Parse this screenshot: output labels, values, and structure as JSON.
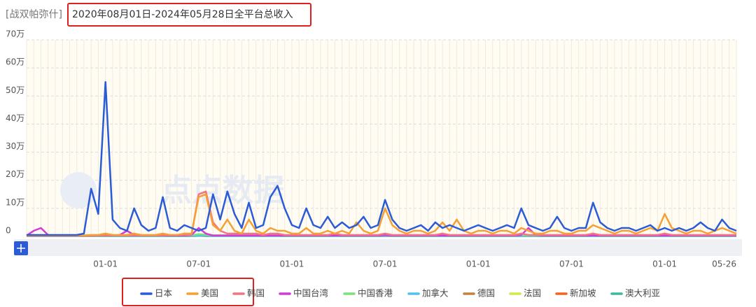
{
  "chart_data": {
    "type": "line",
    "subtitle": "[战双帕弥什]",
    "title": "2020年08月01日-2024年05月28日全平台总收入",
    "watermark": "点点数据",
    "categories": [
      null,
      null,
      null,
      null,
      null,
      null,
      null,
      null,
      null,
      null,
      null,
      "01-01",
      null,
      null,
      null,
      null,
      null,
      null,
      null,
      null,
      null,
      null,
      null,
      null,
      "07-01",
      null,
      null,
      null,
      null,
      null,
      null,
      null,
      null,
      null,
      null,
      null,
      null,
      "01-01",
      null,
      null,
      null,
      null,
      null,
      null,
      null,
      null,
      null,
      null,
      null,
      null,
      "07-01",
      null,
      null,
      null,
      null,
      null,
      null,
      null,
      null,
      null,
      null,
      null,
      null,
      "01-01",
      null,
      null,
      null,
      null,
      null,
      null,
      null,
      null,
      null,
      null,
      null,
      null,
      "07-01",
      null,
      null,
      null,
      null,
      null,
      null,
      null,
      null,
      null,
      null,
      null,
      null,
      "01-01",
      null,
      null,
      null,
      null,
      null,
      null,
      null,
      null,
      null,
      "05-26"
    ],
    "ylim": [
      0,
      70
    ],
    "yticks": [
      0,
      {
        "value": 10,
        "label": "10万"
      },
      {
        "value": 20,
        "label": "20万"
      },
      {
        "value": 30,
        "label": "30万"
      },
      {
        "value": 40,
        "label": "40万"
      },
      {
        "value": 50,
        "label": "50万"
      },
      {
        "value": 60,
        "label": "60万"
      },
      {
        "value": 70,
        "label": "70万"
      }
    ],
    "grid": true,
    "legend": "bottom",
    "series": [
      {
        "name": "日本",
        "color": "#2b5bd7",
        "values": [
          0.5,
          0.5,
          0.5,
          0.5,
          0.5,
          0.5,
          0.5,
          0.5,
          1,
          17,
          8,
          55,
          6,
          3,
          2,
          10,
          4,
          2,
          3,
          14,
          3,
          2,
          4,
          3,
          2,
          3,
          15,
          6,
          16,
          8,
          3,
          12,
          3,
          4,
          14,
          18,
          10,
          4,
          3,
          10,
          4,
          3,
          7,
          3,
          5,
          3,
          4,
          7,
          3,
          4,
          13,
          6,
          3,
          2,
          3,
          4,
          2,
          5,
          3,
          4,
          3,
          2,
          3,
          4,
          3,
          2,
          3,
          4,
          3,
          10,
          4,
          3,
          2,
          3,
          7,
          3,
          2,
          3,
          3,
          12,
          5,
          3,
          2,
          3,
          3,
          2,
          3,
          4,
          2,
          3,
          2,
          3,
          2,
          3,
          5,
          3,
          2,
          6,
          3,
          2
        ]
      },
      {
        "name": "美国",
        "color": "#f5a033",
        "values": [
          0.3,
          0.3,
          0.3,
          0.3,
          0.3,
          0.3,
          0.3,
          0.3,
          0.3,
          0.5,
          0.5,
          1,
          0.5,
          0.5,
          0.5,
          1,
          0.5,
          0.5,
          0.5,
          1,
          0.5,
          0.5,
          1,
          1,
          14,
          15,
          4,
          2,
          6,
          2,
          1,
          6,
          2,
          1,
          3,
          2,
          2,
          1,
          1,
          3,
          1,
          1,
          2,
          1,
          2,
          1,
          5,
          2,
          1,
          2,
          10,
          4,
          2,
          1,
          2,
          2,
          1,
          2,
          5,
          2,
          6,
          2,
          1,
          2,
          2,
          1,
          2,
          2,
          1,
          3,
          2,
          1,
          1,
          2,
          2,
          1,
          1,
          2,
          2,
          4,
          3,
          2,
          1,
          2,
          2,
          1,
          2,
          3,
          2,
          8,
          3,
          2,
          1,
          2,
          2,
          1,
          2,
          3,
          2,
          1
        ]
      },
      {
        "name": "韩国",
        "color": "#f27584",
        "values": [
          0.2,
          0.2,
          0.2,
          0.2,
          0.2,
          0.2,
          0.2,
          0.2,
          0.2,
          0.2,
          0.3,
          0.3,
          0.3,
          0.3,
          0.3,
          0.3,
          0.3,
          0.3,
          0.3,
          0.3,
          0.5,
          0.5,
          0.5,
          0.5,
          15,
          16,
          5,
          2,
          1,
          1,
          1,
          1,
          1,
          0.5,
          1,
          1,
          0.5,
          0.5,
          0.5,
          0.5,
          0.5,
          0.5,
          0.5,
          1,
          0.5,
          0.5,
          0.5,
          0.5,
          0.5,
          0.5,
          1,
          0.5,
          0.5,
          0.5,
          0.5,
          0.5,
          0.5,
          0.5,
          1,
          0.5,
          0.5,
          0.5,
          0.5,
          0.5,
          0.5,
          0.5,
          0.5,
          0.5,
          0.5,
          1,
          0.5,
          0.5,
          0.5,
          0.5,
          0.5,
          0.5,
          0.5,
          0.5,
          0.5,
          1,
          0.5,
          0.5,
          0.5,
          0.5,
          0.5,
          0.5,
          0.5,
          0.5,
          0.5,
          1,
          0.5,
          0.5,
          0.5,
          0.5,
          0.5,
          0.5,
          0.5,
          0.5,
          0.5,
          0.5
        ]
      },
      {
        "name": "中国台湾",
        "color": "#d63ad6",
        "values": [
          0.3,
          2,
          3,
          0.5,
          0.3,
          0.3,
          0.3,
          0.3,
          0.3,
          0.3,
          0.3,
          0.3,
          0.3,
          0.5,
          2,
          0.5,
          0.3,
          0.3,
          0.3,
          0.3,
          0.3,
          0.3,
          0.3,
          0.5,
          3,
          1,
          0.3,
          0.3,
          0.3,
          0.3,
          0.3,
          0.3,
          0.3,
          0.3,
          0.3,
          0.3,
          0.3,
          0.3,
          0.3,
          0.3,
          0.3,
          0.3,
          0.3,
          0.3,
          0.3,
          0.3,
          0.3,
          0.3,
          0.3,
          0.3,
          0.5,
          0.3,
          0.3,
          0.3,
          0.3,
          0.3,
          0.3,
          0.3,
          0.3,
          0.3,
          0.3,
          0.3,
          0.3,
          0.3,
          0.3,
          0.3,
          0.3,
          0.3,
          0.3,
          0.5,
          3,
          0.5,
          0.3,
          0.3,
          0.3,
          0.3,
          0.3,
          0.3,
          0.3,
          0.3,
          0.3,
          0.3,
          0.3,
          0.3,
          0.3,
          0.3,
          0.3,
          0.3,
          0.3,
          0.3,
          0.3,
          0.3,
          0.3,
          0.3,
          0.3,
          0.3,
          0.3,
          0.3,
          0.3,
          0.3
        ]
      },
      {
        "name": "中国香港",
        "color": "#7fe07f",
        "values": [
          0.4,
          0.4,
          0.4,
          0.4,
          0.4,
          0.4,
          0.4,
          0.4,
          0.4,
          0.4,
          0.4,
          0.5,
          0.4,
          0.4,
          0.4,
          0.4,
          0.4,
          0.4,
          0.4,
          0.4,
          0.4,
          0.4,
          0.4,
          0.4,
          0.8,
          0.6,
          0.4,
          0.4,
          0.4,
          0.4,
          0.4,
          0.4,
          0.4,
          0.4,
          0.4,
          0.4,
          0.4,
          0.4,
          0.4,
          0.4,
          0.4,
          0.4,
          0.4,
          0.4,
          0.4,
          0.4,
          0.4,
          0.4,
          0.4,
          0.4,
          0.5,
          0.4,
          0.4,
          0.4,
          0.4,
          0.4,
          0.4,
          0.4,
          0.4,
          0.4,
          0.4,
          0.4,
          0.4,
          0.4,
          0.4,
          0.4,
          0.4,
          0.4,
          0.4,
          0.4,
          0.4,
          0.4,
          0.4,
          0.4,
          0.4,
          0.4,
          0.4,
          0.4,
          0.4,
          0.4,
          0.4,
          0.4,
          0.4,
          0.4,
          0.4,
          0.4,
          0.4,
          0.4,
          0.4,
          0.4,
          0.4,
          0.4,
          0.4,
          0.4,
          0.4,
          0.4,
          0.4,
          0.4,
          0.4,
          0.4
        ]
      },
      {
        "name": "加拿大",
        "color": "#4fc3e8",
        "values": [
          0.1,
          0.1,
          0.1,
          0.1,
          0.1,
          0.1,
          0.1,
          0.1,
          0.1,
          0.1,
          0.1,
          0.2,
          0.1,
          0.1,
          0.1,
          0.1,
          0.1,
          0.1,
          0.1,
          0.1,
          0.1,
          0.1,
          0.1,
          0.1,
          0.2,
          0.2,
          0.1,
          0.1,
          0.1,
          0.1,
          0.1,
          0.1,
          0.1,
          0.1,
          0.1,
          0.1,
          0.1,
          0.1,
          0.1,
          0.1,
          0.1,
          0.1,
          0.1,
          0.1,
          0.1,
          0.1,
          0.1,
          0.1,
          0.1,
          0.1,
          0.2,
          0.1,
          0.1,
          0.1,
          0.1,
          0.1,
          0.1,
          0.1,
          0.1,
          0.1,
          0.1,
          0.1,
          0.1,
          0.1,
          0.1,
          0.1,
          0.1,
          0.1,
          0.1,
          0.1,
          0.1,
          0.1,
          0.1,
          0.1,
          0.1,
          0.1,
          0.1,
          0.1,
          0.1,
          0.1,
          0.1,
          0.1,
          0.1,
          0.1,
          0.1,
          0.1,
          0.1,
          0.1,
          0.1,
          0.1,
          0.1,
          0.1,
          0.1,
          0.1,
          0.1,
          0.1,
          0.1,
          0.1,
          0.1,
          0.1
        ]
      },
      {
        "name": "德国",
        "color": "#c0843e",
        "values": [
          0.1,
          0.1,
          0.1,
          0.1,
          0.1,
          0.1,
          0.1,
          0.1,
          0.1,
          0.1,
          0.1,
          0.1,
          0.1,
          0.1,
          0.1,
          0.1,
          0.1,
          0.1,
          0.1,
          0.1,
          0.1,
          0.1,
          0.1,
          0.1,
          0.2,
          0.1,
          0.1,
          0.1,
          0.1,
          0.1,
          0.1,
          0.1,
          0.1,
          0.1,
          0.1,
          0.1,
          0.1,
          0.1,
          0.1,
          0.1,
          0.1,
          0.1,
          0.1,
          0.1,
          0.1,
          0.1,
          0.1,
          0.1,
          0.1,
          0.1,
          0.1,
          0.1,
          0.1,
          0.1,
          0.1,
          0.1,
          0.1,
          0.1,
          0.1,
          0.1,
          0.1,
          0.1,
          0.1,
          0.1,
          0.1,
          0.1,
          0.1,
          0.1,
          0.1,
          0.1,
          0.1,
          0.1,
          0.1,
          0.1,
          0.1,
          0.1,
          0.1,
          0.1,
          0.1,
          0.1,
          0.1,
          0.1,
          0.1,
          0.1,
          0.1,
          0.1,
          0.1,
          0.1,
          0.1,
          0.1,
          0.1,
          0.1,
          0.1,
          0.1,
          0.1,
          0.1,
          0.1,
          0.1,
          0.1,
          0.1
        ]
      },
      {
        "name": "法国",
        "color": "#d4e84c",
        "values": [
          0.1,
          0.1,
          0.1,
          0.1,
          0.1,
          0.1,
          0.1,
          0.1,
          0.1,
          0.1,
          0.1,
          0.1,
          0.1,
          0.1,
          0.1,
          0.1,
          0.1,
          0.1,
          0.1,
          0.1,
          0.1,
          0.1,
          0.1,
          0.1,
          0.2,
          0.1,
          0.1,
          0.1,
          0.1,
          0.1,
          0.1,
          0.1,
          0.1,
          0.1,
          0.1,
          0.1,
          0.1,
          0.1,
          0.1,
          0.1,
          0.1,
          0.1,
          0.1,
          0.1,
          0.1,
          0.1,
          0.1,
          0.1,
          0.1,
          0.1,
          0.1,
          0.1,
          0.1,
          0.1,
          0.1,
          0.1,
          0.1,
          0.1,
          0.1,
          0.1,
          0.1,
          0.1,
          0.1,
          0.1,
          0.1,
          0.1,
          0.1,
          0.1,
          0.1,
          0.1,
          0.1,
          0.1,
          0.1,
          0.1,
          0.1,
          0.1,
          0.1,
          0.1,
          0.1,
          0.1,
          0.1,
          0.1,
          0.1,
          0.1,
          0.1,
          0.1,
          0.1,
          0.1,
          0.1,
          0.1,
          0.1,
          0.1,
          0.1,
          0.1,
          0.1,
          0.1,
          0.1,
          0.1,
          0.1,
          0.1
        ]
      },
      {
        "name": "新加坡",
        "color": "#f2641e",
        "values": [
          0.1,
          0.1,
          0.1,
          0.1,
          0.1,
          0.1,
          0.1,
          0.1,
          0.1,
          0.1,
          0.1,
          0.2,
          0.1,
          0.1,
          0.1,
          0.1,
          0.1,
          0.1,
          0.1,
          0.1,
          0.1,
          0.1,
          0.1,
          0.1,
          0.3,
          0.2,
          0.1,
          0.1,
          0.1,
          0.1,
          0.1,
          0.1,
          0.1,
          0.1,
          0.1,
          0.1,
          0.1,
          0.1,
          0.1,
          0.1,
          0.1,
          0.1,
          0.1,
          0.1,
          0.1,
          0.1,
          0.1,
          0.1,
          0.1,
          0.1,
          0.1,
          0.1,
          0.1,
          0.1,
          0.1,
          0.1,
          0.1,
          0.1,
          0.1,
          0.1,
          0.1,
          0.1,
          0.1,
          0.1,
          0.1,
          0.1,
          0.1,
          0.1,
          0.1,
          0.1,
          0.1,
          0.1,
          0.1,
          0.1,
          0.1,
          0.1,
          0.1,
          0.1,
          0.1,
          0.1,
          0.1,
          0.1,
          0.1,
          0.1,
          0.1,
          0.1,
          0.1,
          0.1,
          0.1,
          0.1,
          0.1,
          0.1,
          0.1,
          0.1,
          0.1,
          0.1,
          0.1,
          0.1,
          0.1,
          0.1
        ]
      },
      {
        "name": "澳大利亚",
        "color": "#3bb89f",
        "values": [
          0.2,
          0.2,
          0.2,
          0.2,
          0.2,
          0.2,
          0.2,
          0.2,
          0.2,
          0.2,
          0.2,
          0.3,
          0.2,
          0.2,
          0.2,
          0.2,
          0.2,
          0.2,
          0.2,
          0.2,
          0.2,
          0.2,
          0.2,
          0.2,
          0.3,
          0.3,
          0.2,
          0.2,
          0.2,
          0.2,
          0.2,
          0.2,
          0.2,
          0.2,
          0.2,
          0.2,
          0.2,
          0.2,
          0.2,
          0.2,
          0.2,
          0.2,
          0.2,
          0.2,
          0.2,
          0.2,
          0.2,
          0.2,
          0.2,
          0.2,
          0.2,
          0.2,
          0.2,
          0.2,
          0.2,
          0.2,
          0.2,
          0.2,
          0.2,
          0.2,
          0.2,
          0.2,
          0.2,
          0.2,
          0.2,
          0.2,
          0.2,
          0.2,
          0.2,
          0.2,
          0.2,
          0.2,
          0.2,
          0.2,
          0.2,
          0.2,
          0.2,
          0.2,
          0.2,
          0.2,
          0.2,
          0.2,
          0.2,
          0.2,
          0.2,
          0.2,
          0.2,
          0.2,
          0.2,
          0.2,
          0.2,
          0.2,
          0.2,
          0.2,
          0.2,
          0.2,
          0.2,
          0.2,
          0.2,
          0.2
        ]
      }
    ]
  }
}
